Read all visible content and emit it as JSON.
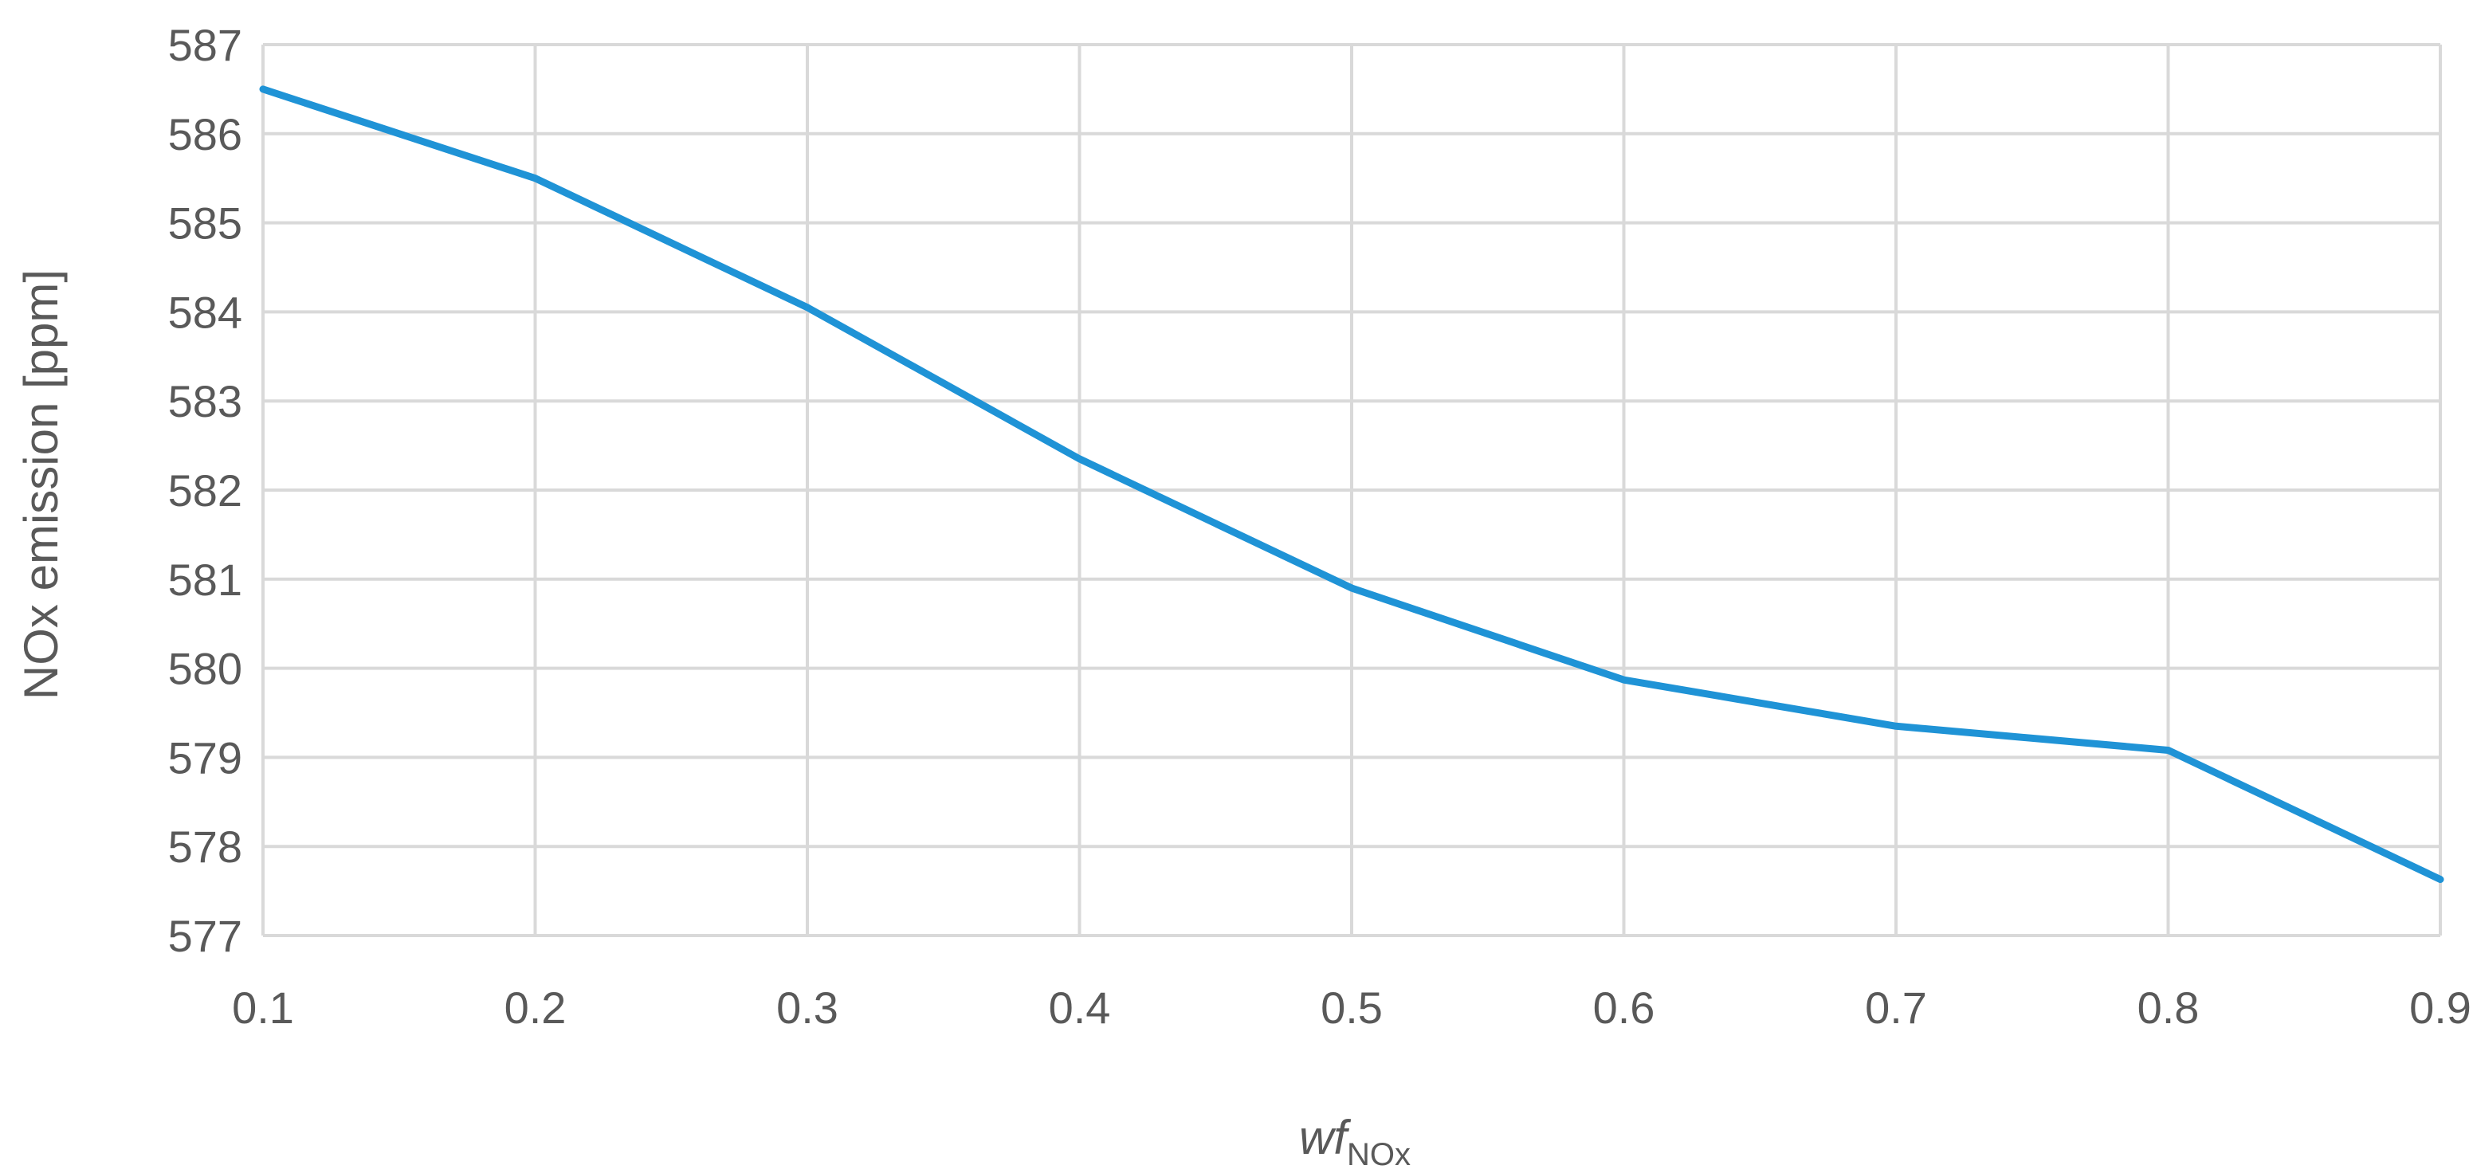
{
  "chart_data": {
    "type": "line",
    "title": "",
    "xlabel": "wf",
    "xlabel_subscript": "NOx",
    "ylabel": "NOx emission [ppm]",
    "xlim": [
      0.1,
      0.9
    ],
    "ylim": [
      577,
      587
    ],
    "x_ticks": [
      "0.1",
      "0.2",
      "0.3",
      "0.4",
      "0.5",
      "0.6",
      "0.7",
      "0.8",
      "0.9"
    ],
    "y_ticks": [
      "577",
      "578",
      "579",
      "580",
      "581",
      "582",
      "583",
      "584",
      "585",
      "586",
      "587"
    ],
    "grid": true,
    "legend": "none",
    "series": [
      {
        "color": "#1f93d6",
        "x": [
          0.1,
          0.2,
          0.3,
          0.4,
          0.5,
          0.6,
          0.7,
          0.8,
          0.9
        ],
        "y": [
          586.5,
          585.5,
          584.05,
          582.35,
          580.9,
          579.87,
          579.35,
          579.08,
          577.63
        ]
      }
    ]
  }
}
